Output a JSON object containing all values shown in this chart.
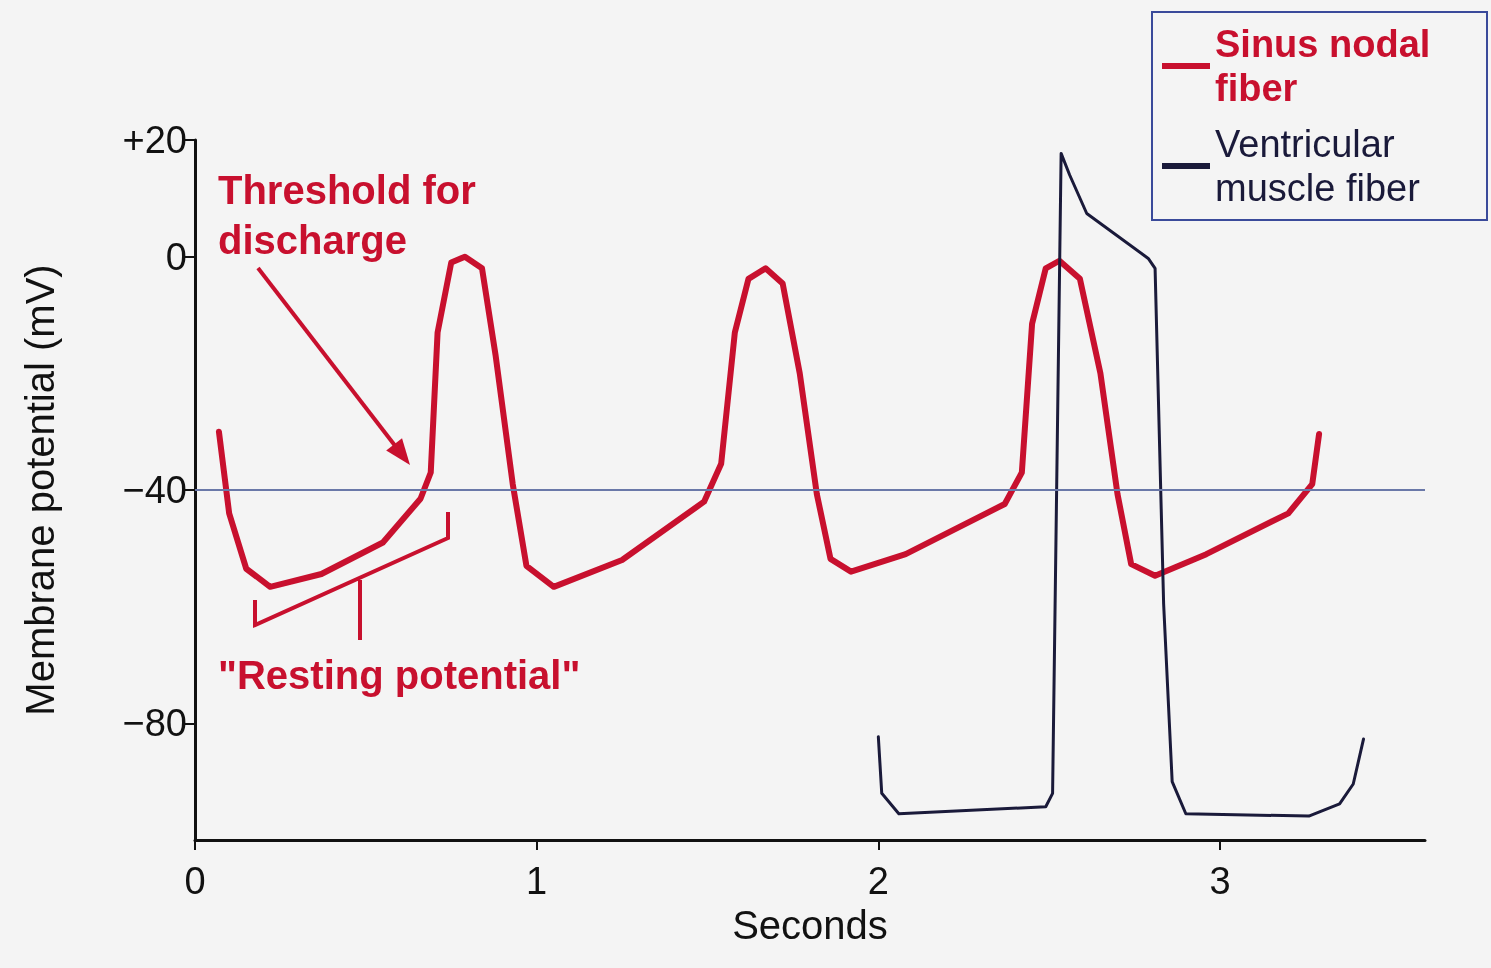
{
  "chart_data": {
    "type": "line",
    "xlabel": "Seconds",
    "ylabel": "Membrane potential (mV)",
    "xlim": [
      0,
      3.6
    ],
    "xticks": [
      0,
      1,
      2,
      3
    ],
    "ylim": [
      -100,
      20
    ],
    "yticks": [
      {
        "value": 20,
        "label": "+20"
      },
      0,
      {
        "value": -40,
        "label": "−40"
      },
      {
        "value": -80,
        "label": "−80"
      }
    ],
    "grid": false,
    "legend": "top right",
    "marker": "none",
    "line_style": "solid",
    "ref_lines": [
      {
        "axis": "y",
        "value": -40,
        "label": null,
        "color": "#6a78a8"
      }
    ],
    "annotations": [
      "Threshold for discharge",
      "\"Resting potential\""
    ],
    "series": [
      {
        "name": "Sinus nodal fiber",
        "color": "#c8102e",
        "x": [
          0.07,
          0.1,
          0.15,
          0.22,
          0.37,
          0.55,
          0.66,
          0.69,
          0.71,
          0.75,
          0.79,
          0.84,
          0.88,
          0.93,
          0.97,
          1.05,
          1.25,
          1.49,
          1.54,
          1.58,
          1.62,
          1.67,
          1.72,
          1.77,
          1.82,
          1.86,
          1.92,
          2.08,
          2.37,
          2.42,
          2.45,
          2.49,
          2.53,
          2.59,
          2.65,
          2.7,
          2.74,
          2.81,
          2.96,
          3.2,
          3.27,
          3.29
        ],
        "values": [
          -30,
          -44,
          -53.5,
          -56.6,
          -54.4,
          -49,
          -41.5,
          -37,
          -13,
          -1,
          0,
          -2,
          -17,
          -39,
          -53,
          -56.6,
          -52,
          -42,
          -35.5,
          -13,
          -3.8,
          -2,
          -4.6,
          -20,
          -40.7,
          -51.8,
          -54,
          -51,
          -42.4,
          -37,
          -11.5,
          -2,
          -0.7,
          -3.8,
          -20,
          -40.7,
          -52.7,
          -54.7,
          -51,
          -44,
          -39,
          -30.4
        ]
      },
      {
        "name": "Ventricular muscle fiber",
        "color": "#1a1a3a",
        "x": [
          2.0,
          2.01,
          2.06,
          2.49,
          2.51,
          2.535,
          2.56,
          2.61,
          2.79,
          2.81,
          2.835,
          2.86,
          2.9,
          3.26,
          3.35,
          3.39,
          3.42
        ],
        "values": [
          -82.3,
          -92,
          -95.5,
          -94.3,
          -92,
          17.7,
          14,
          7.4,
          -0.3,
          -2,
          -59.5,
          -90,
          -95.5,
          -95.9,
          -93.8,
          -90.4,
          -82.7
        ]
      }
    ]
  }
}
